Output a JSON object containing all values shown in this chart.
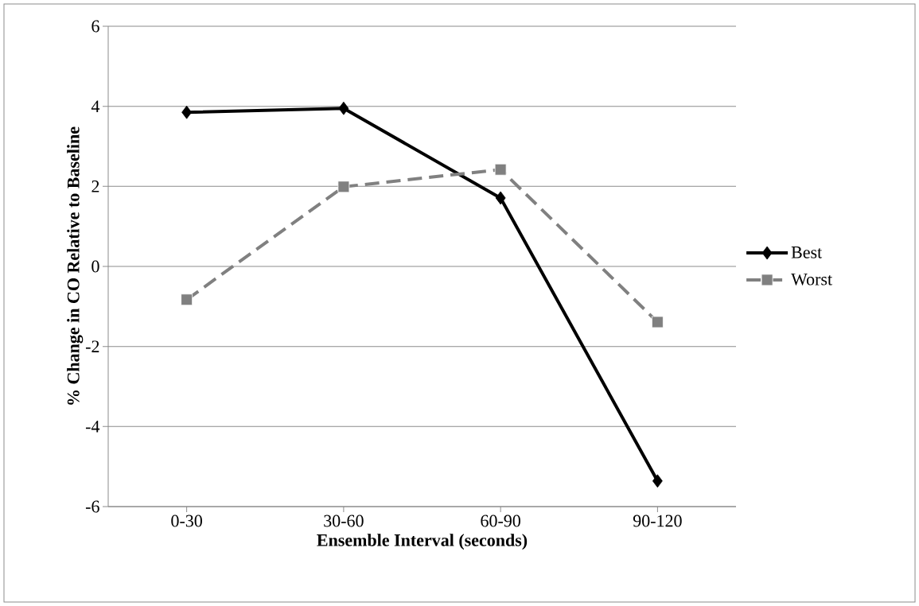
{
  "chart_data": {
    "type": "line",
    "xlabel": "Ensemble Interval (seconds)",
    "ylabel": "% Change in CO Relative to Baseline",
    "categories": [
      "0-30",
      "30-60",
      "60-90",
      "90-120"
    ],
    "series": [
      {
        "name": "Best",
        "color": "#000000",
        "values": [
          3.85,
          3.95,
          1.71,
          -5.36
        ],
        "marker": "diamond",
        "line_style": "solid"
      },
      {
        "name": "Worst",
        "color": "#808080",
        "values": [
          -0.83,
          1.99,
          2.42,
          -1.39
        ],
        "marker": "square",
        "line_style": "dashed"
      }
    ],
    "ylim": [
      -6,
      6
    ],
    "yticks": [
      -6,
      -4,
      -2,
      0,
      2,
      4,
      6
    ],
    "grid": "y",
    "legend": "right"
  }
}
